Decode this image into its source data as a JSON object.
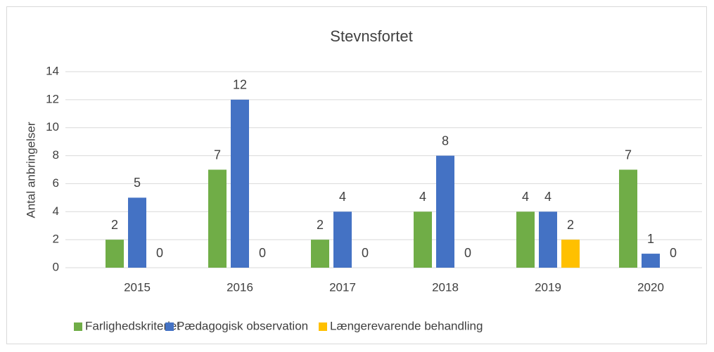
{
  "chart_data": {
    "type": "bar",
    "title": "Stevnsfortet",
    "y_label": "Antal anbringelser",
    "categories": [
      "2015",
      "2016",
      "2017",
      "2018",
      "2019",
      "2020"
    ],
    "series": [
      {
        "name": "Farlighedskriteriet",
        "color": "#70ad47",
        "values": [
          2,
          7,
          2,
          4,
          4,
          7
        ]
      },
      {
        "name": "Pædagogisk observation",
        "color": "#4472c4",
        "values": [
          5,
          12,
          4,
          8,
          4,
          1
        ]
      },
      {
        "name": "Længerevarende behandling",
        "color": "#ffc000",
        "values": [
          0,
          0,
          0,
          0,
          2,
          0
        ]
      }
    ],
    "ylim": [
      0,
      14
    ],
    "yticks": [
      0,
      2,
      4,
      6,
      8,
      10,
      12,
      14
    ],
    "grid": true,
    "legend": "bottom"
  }
}
